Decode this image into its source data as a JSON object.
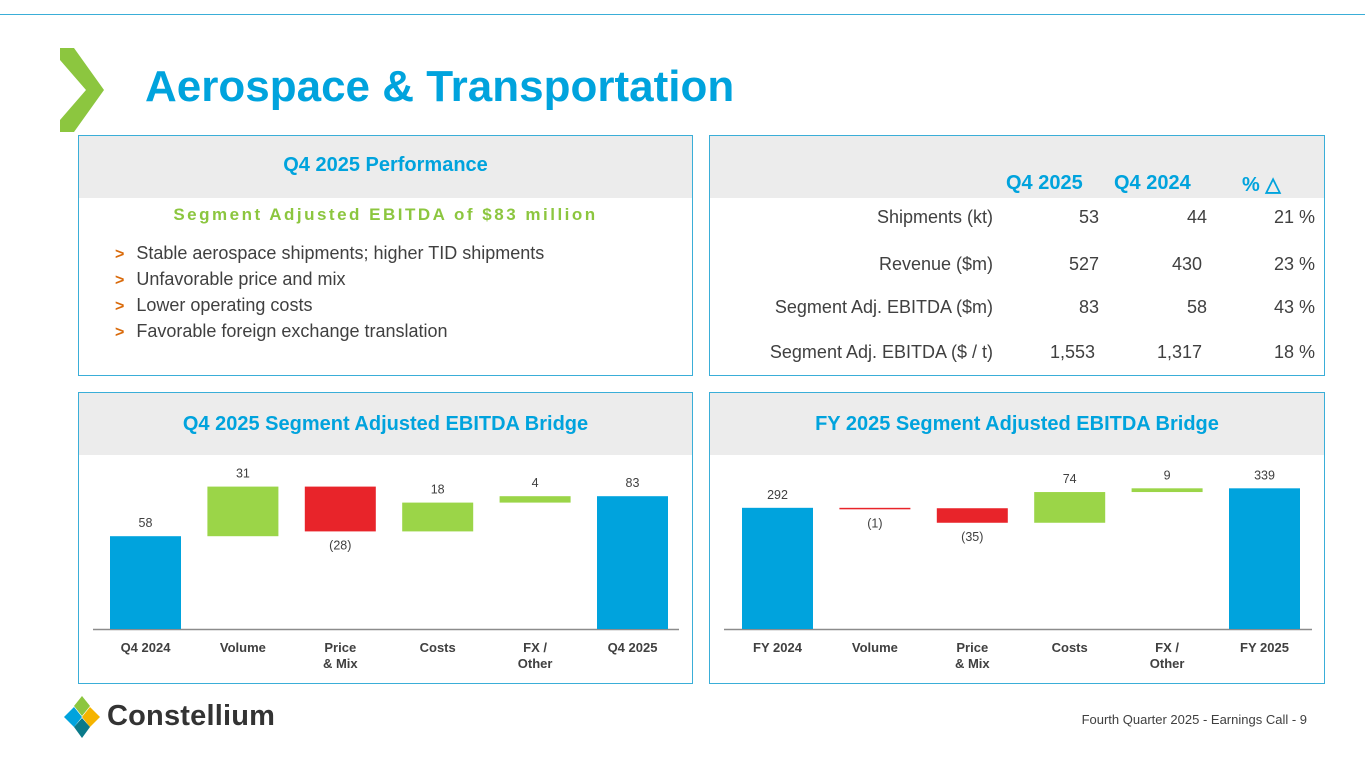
{
  "title": "Aerospace & Transportation",
  "performance": {
    "heading": "Q4 2025 Performance",
    "subheading": "Segment Adjusted EBITDA of $83 million",
    "bullet_marker": ">",
    "bullets": [
      "Stable aerospace shipments; higher TID shipments",
      "Unfavorable price and mix",
      "Lower operating costs",
      "Favorable foreign exchange translation"
    ]
  },
  "kpi_table": {
    "headers": [
      "Q4 2025",
      "Q4 2024",
      "% △"
    ],
    "rows": [
      {
        "label": "Shipments (kt)",
        "q4_2025": "53",
        "q4_2024": "44",
        "pct": "21 %"
      },
      {
        "label": "Revenue ($m)",
        "q4_2025": "527",
        "q4_2024": "430",
        "pct": "23 %"
      },
      {
        "label": "Segment Adj. EBITDA  ($m)",
        "q4_2025": "83",
        "q4_2024": "58",
        "pct": "43 %"
      },
      {
        "label": "Segment Adj. EBITDA ($ / t)",
        "q4_2025": "1,553",
        "q4_2024": "1,317",
        "pct": "18 %"
      }
    ]
  },
  "chart_data": [
    {
      "type": "bar",
      "subtype": "waterfall",
      "title": "Q4 2025 Segment Adjusted EBITDA Bridge",
      "categories": [
        "Q4 2024",
        "Volume",
        "Price\n& Mix",
        "Costs",
        "FX /\nOther",
        "Q4 2025"
      ],
      "values": [
        58,
        31,
        -28,
        18,
        4,
        83
      ],
      "labels": [
        "58",
        "31",
        "(28)",
        "18",
        "4",
        "83"
      ],
      "kinds": [
        "total",
        "delta",
        "delta",
        "delta",
        "delta",
        "total"
      ],
      "colors": {
        "total": "#00a3dd",
        "positive": "#9bd548",
        "negative": "#e8242a"
      }
    },
    {
      "type": "bar",
      "subtype": "waterfall",
      "title": "FY 2025 Segment Adjusted EBITDA Bridge",
      "categories": [
        "FY 2024",
        "Volume",
        "Price\n& Mix",
        "Costs",
        "FX /\nOther",
        "FY 2025"
      ],
      "values": [
        292,
        -1,
        -35,
        74,
        9,
        339
      ],
      "labels": [
        "292",
        "(1)",
        "(35)",
        "74",
        "9",
        "339"
      ],
      "kinds": [
        "total",
        "delta",
        "delta",
        "delta",
        "delta",
        "total"
      ],
      "colors": {
        "total": "#00a3dd",
        "positive": "#9bd548",
        "negative": "#e8242a"
      }
    }
  ],
  "logo": {
    "name": "Constellium"
  },
  "footer": "Fourth Quarter 2025 - Earnings Call - 9"
}
